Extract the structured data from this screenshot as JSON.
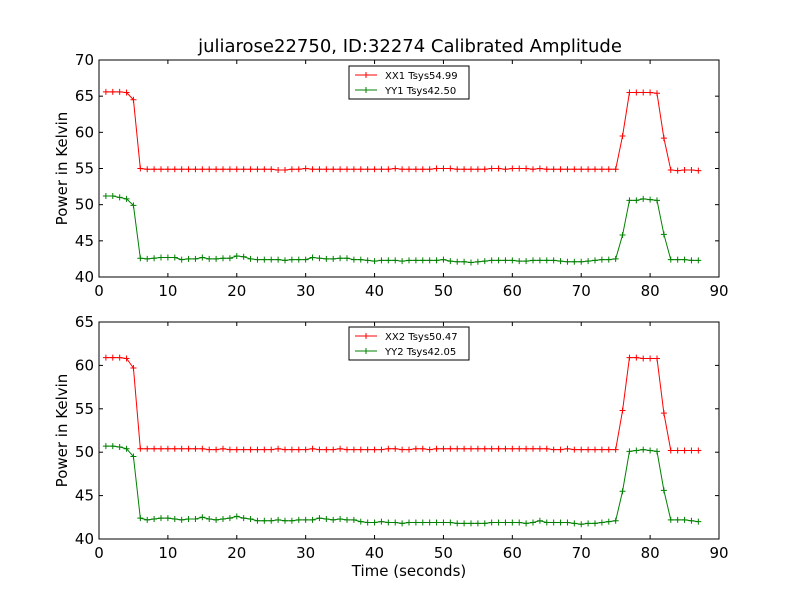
{
  "figure": {
    "title": "juliarose22750, ID:32274 Calibrated Amplitude"
  },
  "chart_data": [
    {
      "type": "line",
      "xlabel": "",
      "ylabel": "Power in Kelvin",
      "xlim": [
        0,
        90
      ],
      "ylim": [
        40,
        70
      ],
      "xticks": [
        0,
        10,
        20,
        30,
        40,
        50,
        60,
        70,
        80,
        90
      ],
      "yticks": [
        40,
        45,
        50,
        55,
        60,
        65,
        70
      ],
      "grid": false,
      "legend": "top-center",
      "x": [
        1,
        2,
        3,
        4,
        5,
        6,
        7,
        8,
        9,
        10,
        11,
        12,
        13,
        14,
        15,
        16,
        17,
        18,
        19,
        20,
        21,
        22,
        23,
        24,
        25,
        26,
        27,
        28,
        29,
        30,
        31,
        32,
        33,
        34,
        35,
        36,
        37,
        38,
        39,
        40,
        41,
        42,
        43,
        44,
        45,
        46,
        47,
        48,
        49,
        50,
        51,
        52,
        53,
        54,
        55,
        56,
        57,
        58,
        59,
        60,
        61,
        62,
        63,
        64,
        65,
        66,
        67,
        68,
        69,
        70,
        71,
        72,
        73,
        74,
        75,
        76,
        77,
        78,
        79,
        80,
        81,
        82,
        83,
        84,
        85,
        86,
        87
      ],
      "series": [
        {
          "name": "XX1 Tsys54.99",
          "color": "#ff0000",
          "values": [
            65.6,
            65.6,
            65.6,
            65.5,
            64.5,
            55.0,
            54.9,
            54.9,
            54.9,
            54.9,
            54.9,
            54.9,
            54.9,
            54.9,
            54.9,
            54.9,
            54.9,
            54.9,
            54.9,
            54.9,
            54.9,
            54.9,
            54.9,
            54.9,
            54.9,
            54.8,
            54.8,
            54.9,
            54.9,
            55.0,
            54.9,
            54.9,
            54.9,
            54.9,
            54.9,
            54.9,
            54.9,
            54.9,
            54.9,
            54.9,
            54.9,
            54.9,
            55.0,
            54.9,
            54.9,
            54.9,
            54.9,
            54.9,
            55.0,
            55.0,
            55.0,
            54.9,
            54.9,
            54.9,
            54.9,
            54.9,
            55.0,
            55.0,
            54.9,
            55.0,
            55.0,
            55.0,
            54.9,
            55.0,
            54.9,
            54.9,
            54.9,
            54.9,
            54.9,
            54.9,
            54.9,
            54.9,
            54.9,
            54.9,
            54.9,
            59.5,
            65.5,
            65.5,
            65.5,
            65.5,
            65.4,
            59.2,
            54.8,
            54.7,
            54.8,
            54.8,
            54.7
          ]
        },
        {
          "name": "YY1 Tsys42.50",
          "color": "#008000",
          "values": [
            51.2,
            51.2,
            51.0,
            50.8,
            49.9,
            42.6,
            42.5,
            42.6,
            42.7,
            42.7,
            42.7,
            42.4,
            42.5,
            42.5,
            42.7,
            42.5,
            42.5,
            42.6,
            42.6,
            42.9,
            42.8,
            42.5,
            42.4,
            42.4,
            42.4,
            42.4,
            42.3,
            42.4,
            42.4,
            42.4,
            42.7,
            42.6,
            42.5,
            42.5,
            42.6,
            42.6,
            42.4,
            42.4,
            42.3,
            42.2,
            42.3,
            42.3,
            42.3,
            42.2,
            42.3,
            42.3,
            42.3,
            42.3,
            42.3,
            42.4,
            42.2,
            42.1,
            42.1,
            42.0,
            42.1,
            42.2,
            42.3,
            42.3,
            42.3,
            42.3,
            42.2,
            42.2,
            42.3,
            42.3,
            42.3,
            42.3,
            42.2,
            42.1,
            42.1,
            42.1,
            42.2,
            42.3,
            42.4,
            42.4,
            42.5,
            45.8,
            50.6,
            50.6,
            50.8,
            50.7,
            50.6,
            45.9,
            42.4,
            42.4,
            42.4,
            42.3,
            42.3
          ]
        }
      ]
    },
    {
      "type": "line",
      "xlabel": "Time (seconds)",
      "ylabel": "Power in Kelvin",
      "xlim": [
        0,
        90
      ],
      "ylim": [
        40,
        65
      ],
      "xticks": [
        0,
        10,
        20,
        30,
        40,
        50,
        60,
        70,
        80,
        90
      ],
      "yticks": [
        40,
        45,
        50,
        55,
        60,
        65
      ],
      "grid": false,
      "legend": "top-center",
      "x": [
        1,
        2,
        3,
        4,
        5,
        6,
        7,
        8,
        9,
        10,
        11,
        12,
        13,
        14,
        15,
        16,
        17,
        18,
        19,
        20,
        21,
        22,
        23,
        24,
        25,
        26,
        27,
        28,
        29,
        30,
        31,
        32,
        33,
        34,
        35,
        36,
        37,
        38,
        39,
        40,
        41,
        42,
        43,
        44,
        45,
        46,
        47,
        48,
        49,
        50,
        51,
        52,
        53,
        54,
        55,
        56,
        57,
        58,
        59,
        60,
        61,
        62,
        63,
        64,
        65,
        66,
        67,
        68,
        69,
        70,
        71,
        72,
        73,
        74,
        75,
        76,
        77,
        78,
        79,
        80,
        81,
        82,
        83,
        84,
        85,
        86,
        87
      ],
      "series": [
        {
          "name": "XX2 Tsys50.47",
          "color": "#ff0000",
          "values": [
            60.9,
            60.9,
            60.9,
            60.8,
            59.7,
            50.4,
            50.4,
            50.4,
            50.4,
            50.4,
            50.4,
            50.4,
            50.4,
            50.4,
            50.4,
            50.3,
            50.3,
            50.4,
            50.3,
            50.3,
            50.3,
            50.3,
            50.3,
            50.3,
            50.3,
            50.4,
            50.3,
            50.3,
            50.3,
            50.3,
            50.4,
            50.3,
            50.3,
            50.3,
            50.4,
            50.3,
            50.3,
            50.3,
            50.3,
            50.3,
            50.3,
            50.4,
            50.4,
            50.3,
            50.3,
            50.4,
            50.4,
            50.3,
            50.4,
            50.4,
            50.4,
            50.4,
            50.4,
            50.4,
            50.4,
            50.4,
            50.4,
            50.4,
            50.4,
            50.4,
            50.4,
            50.4,
            50.4,
            50.4,
            50.4,
            50.3,
            50.3,
            50.4,
            50.3,
            50.3,
            50.3,
            50.3,
            50.3,
            50.3,
            50.3,
            54.8,
            60.9,
            60.9,
            60.8,
            60.8,
            60.8,
            54.5,
            50.2,
            50.2,
            50.2,
            50.2,
            50.2
          ]
        },
        {
          "name": "YY2 Tsys42.05",
          "color": "#008000",
          "values": [
            50.7,
            50.7,
            50.6,
            50.4,
            49.5,
            42.4,
            42.2,
            42.3,
            42.4,
            42.4,
            42.3,
            42.2,
            42.3,
            42.3,
            42.5,
            42.3,
            42.2,
            42.3,
            42.4,
            42.6,
            42.4,
            42.3,
            42.1,
            42.1,
            42.1,
            42.2,
            42.1,
            42.1,
            42.2,
            42.2,
            42.2,
            42.4,
            42.3,
            42.2,
            42.3,
            42.2,
            42.2,
            42.0,
            41.9,
            41.9,
            42.0,
            41.9,
            41.9,
            41.8,
            41.9,
            41.9,
            41.9,
            41.9,
            41.9,
            41.9,
            41.9,
            41.8,
            41.8,
            41.8,
            41.8,
            41.8,
            41.9,
            41.9,
            41.9,
            41.9,
            41.9,
            41.8,
            41.9,
            42.1,
            41.9,
            41.9,
            41.9,
            41.9,
            41.8,
            41.7,
            41.8,
            41.8,
            41.9,
            42.0,
            42.1,
            45.5,
            50.1,
            50.2,
            50.3,
            50.2,
            50.1,
            45.6,
            42.2,
            42.2,
            42.2,
            42.1,
            42.0
          ]
        }
      ]
    }
  ]
}
